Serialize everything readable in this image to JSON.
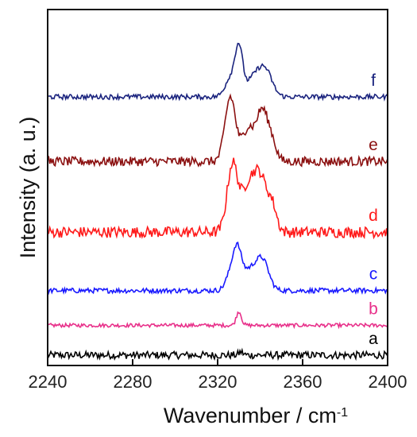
{
  "chart_data": {
    "type": "line",
    "title": "",
    "xlabel": "Wavenumber / cm",
    "xlabel_superscript": "-1",
    "ylabel": "Intensity (a. u.)",
    "xlim": [
      2240,
      2400
    ],
    "xticks": [
      2240,
      2280,
      2320,
      2360,
      2400
    ],
    "xtick_labels": [
      "2240",
      "2280",
      "2320",
      "2360",
      "2400"
    ],
    "y_tick_labels_shown": false,
    "grid": false,
    "series": [
      {
        "name": "a",
        "color": "#000000",
        "baseline": 0.0,
        "noise": 0.012,
        "peaks": [
          {
            "x": 2331,
            "height": 0.01,
            "width": 1
          }
        ]
      },
      {
        "name": "b",
        "color": "#e8308a",
        "baseline": 0.097,
        "noise": 0.006,
        "peaks": [
          {
            "x": 2330,
            "height": 0.045,
            "width": 1.2
          }
        ]
      },
      {
        "name": "c",
        "color": "#1a1aff",
        "baseline": 0.21,
        "noise": 0.008,
        "peaks": [
          {
            "x": 2325,
            "height": 0.03,
            "width": 2
          },
          {
            "x": 2329,
            "height": 0.14,
            "width": 2.2
          },
          {
            "x": 2335,
            "height": 0.06,
            "width": 3
          },
          {
            "x": 2341,
            "height": 0.1,
            "width": 3
          }
        ]
      },
      {
        "name": "d",
        "color": "#ff1a1a",
        "baseline": 0.4,
        "noise": 0.018,
        "peaks": [
          {
            "x": 2327,
            "height": 0.22,
            "width": 2.5
          },
          {
            "x": 2334,
            "height": 0.12,
            "width": 3
          },
          {
            "x": 2340,
            "height": 0.18,
            "width": 3.5
          },
          {
            "x": 2346,
            "height": 0.06,
            "width": 2
          }
        ]
      },
      {
        "name": "e",
        "color": "#8b1010",
        "baseline": 0.63,
        "noise": 0.015,
        "peaks": [
          {
            "x": 2326,
            "height": 0.21,
            "width": 2.5
          },
          {
            "x": 2334,
            "height": 0.1,
            "width": 2.5
          },
          {
            "x": 2341,
            "height": 0.17,
            "width": 3
          },
          {
            "x": 2346,
            "height": 0.04,
            "width": 2
          }
        ]
      },
      {
        "name": "f",
        "color": "#1a237e",
        "baseline": 0.84,
        "noise": 0.008,
        "peaks": [
          {
            "x": 2326,
            "height": 0.06,
            "width": 2.5
          },
          {
            "x": 2330,
            "height": 0.15,
            "width": 1.8
          },
          {
            "x": 2338,
            "height": 0.07,
            "width": 4
          },
          {
            "x": 2343,
            "height": 0.06,
            "width": 3
          }
        ]
      }
    ],
    "series_label_positions": "right, above each trace"
  }
}
